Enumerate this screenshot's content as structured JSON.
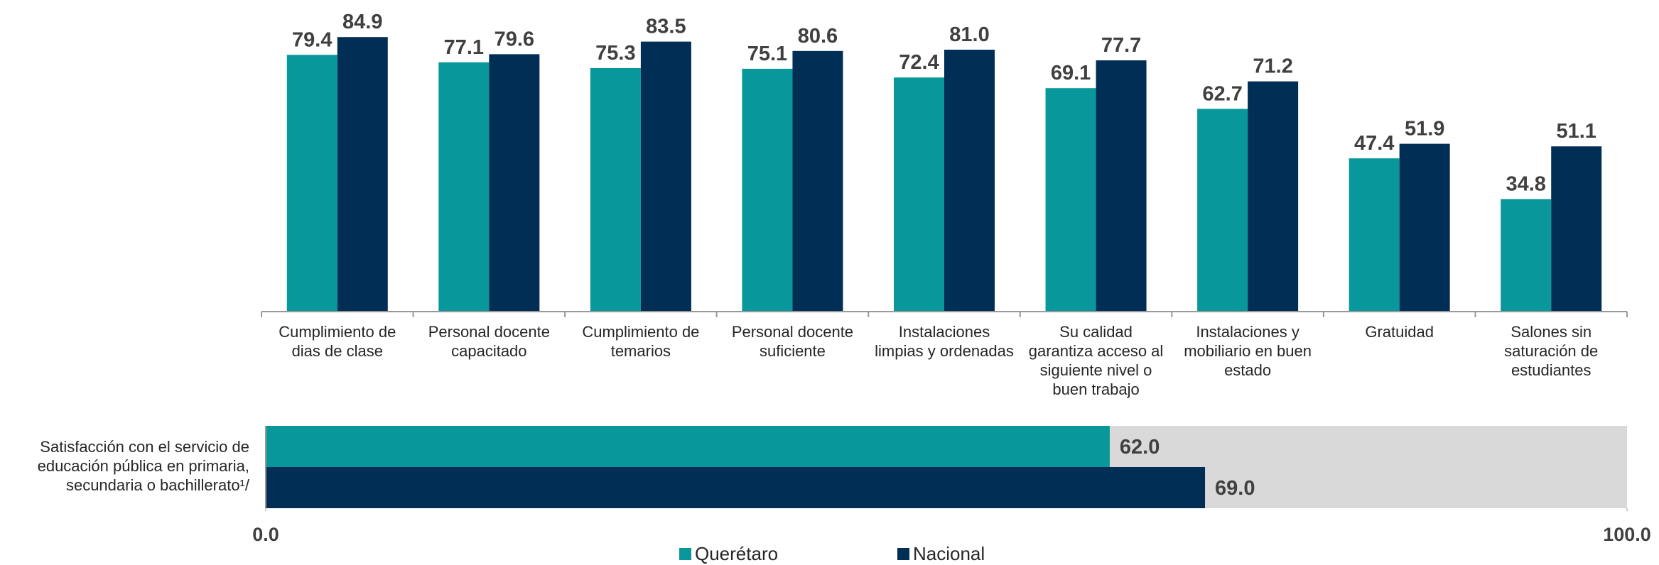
{
  "chart_data": [
    {
      "type": "bar",
      "categories": [
        "Cumplimiento de dias de clase",
        "Personal docente capacitado",
        "Cumplimiento de temarios",
        "Personal docente suficiente",
        "Instalaciones limpias y ordenadas",
        "Su calidad garantiza acceso al siguiente nivel o buen trabajo",
        "Instalaciones y mobiliario en buen estado",
        "Gratuidad",
        "Salones sin saturación de estudiantes"
      ],
      "series": [
        {
          "color": "#08979a",
          "values": [
            79.4,
            77.1,
            75.3,
            75.1,
            72.4,
            69.1,
            62.7,
            47.4,
            34.8
          ],
          "value_labels": [
            "79.4",
            "77.1",
            "75.3",
            "75.1",
            "72.4",
            "69.1",
            "62.7",
            "47.4",
            "34.8"
          ]
        },
        {
          "color": "#002e55",
          "values": [
            84.9,
            79.6,
            83.5,
            80.6,
            81.0,
            77.7,
            71.2,
            51.9,
            51.1
          ],
          "value_labels": [
            "84.9",
            "79.6",
            "83.5",
            "80.6",
            "81.0",
            "77.7",
            "71.2",
            "51.9",
            "51.1"
          ]
        }
      ],
      "ylim": [
        0,
        90
      ]
    },
    {
      "type": "hbar",
      "categories": [
        "Satisfacción con el servicio de educación pública en primaria, secundaria o bachillerato¹/"
      ],
      "series": [
        {
          "name": "Querétaro",
          "color": "#08979a",
          "values": [
            62.0
          ],
          "value_labels": [
            "62.0"
          ]
        },
        {
          "name": "Nacional",
          "color": "#002e55",
          "values": [
            69.0
          ],
          "value_labels": [
            "69.0"
          ]
        }
      ],
      "xlim": [
        0,
        100
      ],
      "xticks": [
        {
          "value": 0,
          "label": "0.0"
        },
        {
          "value": 100,
          "label": "100.0"
        }
      ],
      "background": "#d9d9d9"
    }
  ]
}
